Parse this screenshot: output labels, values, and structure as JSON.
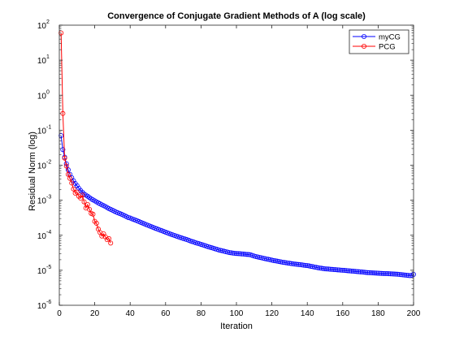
{
  "chart_data": {
    "type": "line",
    "title": "Convergence of Conjugate Gradient Methods of A (log scale)",
    "xlabel": "Iteration",
    "ylabel": "Residual Norm (log)",
    "xlim": [
      0,
      200
    ],
    "ylim": [
      1e-06,
      100
    ],
    "yscale": "log",
    "grid": false,
    "legend_position": "top-right",
    "x_ticks": [
      {
        "value": 0,
        "label": "0"
      },
      {
        "value": 20,
        "label": "20"
      },
      {
        "value": 40,
        "label": "40"
      },
      {
        "value": 60,
        "label": "60"
      },
      {
        "value": 80,
        "label": "80"
      },
      {
        "value": 100,
        "label": "100"
      },
      {
        "value": 120,
        "label": "120"
      },
      {
        "value": 140,
        "label": "140"
      },
      {
        "value": 160,
        "label": "160"
      },
      {
        "value": 180,
        "label": "180"
      },
      {
        "value": 200,
        "label": "200"
      }
    ],
    "y_ticks": [
      {
        "value": 1e-06,
        "base": "10",
        "exp": "-6"
      },
      {
        "value": 1e-05,
        "base": "10",
        "exp": "-5"
      },
      {
        "value": 0.0001,
        "base": "10",
        "exp": "-4"
      },
      {
        "value": 0.001,
        "base": "10",
        "exp": "-3"
      },
      {
        "value": 0.01,
        "base": "10",
        "exp": "-2"
      },
      {
        "value": 0.1,
        "base": "10",
        "exp": "-1"
      },
      {
        "value": 1,
        "base": "10",
        "exp": "0"
      },
      {
        "value": 10,
        "base": "10",
        "exp": "1"
      },
      {
        "value": 100,
        "base": "10",
        "exp": "2"
      }
    ],
    "series": [
      {
        "name": "myCG",
        "color": "#0000ff",
        "marker": "circle",
        "x": [
          1,
          2,
          3,
          4,
          5,
          6,
          7,
          8,
          9,
          10,
          11,
          12,
          13,
          14,
          15,
          16,
          17,
          18,
          19,
          20,
          21,
          22,
          23,
          24,
          25,
          26,
          27,
          28,
          29,
          30,
          31,
          32,
          33,
          34,
          35,
          36,
          37,
          38,
          39,
          40,
          41,
          42,
          43,
          44,
          45,
          46,
          47,
          48,
          49,
          50,
          51,
          52,
          53,
          54,
          55,
          56,
          57,
          58,
          59,
          60,
          61,
          62,
          63,
          64,
          65,
          66,
          67,
          68,
          69,
          70,
          71,
          72,
          73,
          74,
          75,
          76,
          77,
          78,
          79,
          80,
          81,
          82,
          83,
          84,
          85,
          86,
          87,
          88,
          89,
          90,
          91,
          92,
          93,
          94,
          95,
          96,
          97,
          98,
          99,
          100,
          101,
          102,
          103,
          104,
          105,
          106,
          107,
          108,
          109,
          110,
          111,
          112,
          113,
          114,
          115,
          116,
          117,
          118,
          119,
          120,
          121,
          122,
          123,
          124,
          125,
          126,
          127,
          128,
          129,
          130,
          131,
          132,
          133,
          134,
          135,
          136,
          137,
          138,
          139,
          140,
          141,
          142,
          143,
          144,
          145,
          146,
          147,
          148,
          149,
          150,
          151,
          152,
          153,
          154,
          155,
          156,
          157,
          158,
          159,
          160,
          161,
          162,
          163,
          164,
          165,
          166,
          167,
          168,
          169,
          170,
          171,
          172,
          173,
          174,
          175,
          176,
          177,
          178,
          179,
          180,
          181,
          182,
          183,
          184,
          185,
          186,
          187,
          188,
          189,
          190,
          191,
          192,
          193,
          194,
          195,
          196,
          197,
          198,
          199,
          200
        ],
        "values": [
          0.07,
          0.028,
          0.017,
          0.011,
          0.0074,
          0.0055,
          0.0044,
          0.0036,
          0.003,
          0.0026,
          0.0022,
          0.0019,
          0.0017,
          0.0015,
          0.0014,
          0.0013,
          0.0012,
          0.0011,
          0.00103,
          0.00096,
          0.0009,
          0.00084,
          0.00079,
          0.00074,
          0.0007,
          0.00066,
          0.00062,
          0.00058,
          0.00055,
          0.00052,
          0.00049,
          0.00046,
          0.00044,
          0.00042,
          0.0004,
          0.00038,
          0.00036,
          0.00034,
          0.00032,
          0.00031,
          0.000295,
          0.000282,
          0.00027,
          0.000258,
          0.000246,
          0.000234,
          0.000223,
          0.000212,
          0.000202,
          0.000193,
          0.000184,
          0.000175,
          0.000167,
          0.00016,
          0.000153,
          0.000146,
          0.00014,
          0.000134,
          0.000128,
          0.000122,
          0.000117,
          0.000112,
          0.000107,
          0.000103,
          9.9e-05,
          9.5e-05,
          9.1e-05,
          8.7e-05,
          8.4e-05,
          8.1e-05,
          7.8e-05,
          7.5e-05,
          7.2e-05,
          6.9e-05,
          6.6e-05,
          6.4e-05,
          6.1e-05,
          5.9e-05,
          5.7e-05,
          5.5e-05,
          5.3e-05,
          5.1e-05,
          4.9e-05,
          4.7e-05,
          4.55e-05,
          4.4e-05,
          4.25e-05,
          4.1e-05,
          3.95e-05,
          3.8e-05,
          3.7e-05,
          3.6e-05,
          3.5e-05,
          3.4e-05,
          3.3e-05,
          3.2e-05,
          3.15e-05,
          3.1e-05,
          3.05e-05,
          3e-05,
          2.98e-05,
          2.96e-05,
          2.93e-05,
          2.9e-05,
          2.87e-05,
          2.84e-05,
          2.81e-05,
          2.75e-05,
          2.65e-05,
          2.55e-05,
          2.47e-05,
          2.4e-05,
          2.34e-05,
          2.28e-05,
          2.22e-05,
          2.16e-05,
          2.1e-05,
          2.05e-05,
          2e-05,
          1.95e-05,
          1.9e-05,
          1.86e-05,
          1.82e-05,
          1.78e-05,
          1.74e-05,
          1.7e-05,
          1.67e-05,
          1.64e-05,
          1.61e-05,
          1.58e-05,
          1.55e-05,
          1.52e-05,
          1.5e-05,
          1.48e-05,
          1.46e-05,
          1.44e-05,
          1.42e-05,
          1.4e-05,
          1.38e-05,
          1.36e-05,
          1.33e-05,
          1.3e-05,
          1.27e-05,
          1.24e-05,
          1.21e-05,
          1.18e-05,
          1.16e-05,
          1.14e-05,
          1.12e-05,
          1.1e-05,
          1.09e-05,
          1.08e-05,
          1.07e-05,
          1.06e-05,
          1.05e-05,
          1.04e-05,
          1.03e-05,
          1.02e-05,
          1.01e-05,
          1e-05,
          9.9e-06,
          9.8e-06,
          9.7e-06,
          9.6e-06,
          9.5e-06,
          9.4e-06,
          9.3e-06,
          9.2e-06,
          9.1e-06,
          9e-06,
          8.9e-06,
          8.8e-06,
          8.7e-06,
          8.6e-06,
          8.5e-06,
          8.45e-06,
          8.4e-06,
          8.35e-06,
          8.3e-06,
          8.25e-06,
          8.2e-06,
          8.15e-06,
          8.1e-06,
          8.05e-06,
          8e-06,
          7.95e-06,
          7.9e-06,
          7.85e-06,
          7.8e-06,
          7.75e-06,
          7.7e-06,
          7.6e-06,
          7.5e-06,
          7.4e-06,
          7.3e-06,
          7.2e-06,
          7.1e-06,
          7e-06,
          7.2e-06,
          7.6e-06
        ]
      },
      {
        "name": "PCG",
        "color": "#ff0000",
        "marker": "circle",
        "x": [
          1,
          2,
          3,
          4,
          5,
          6,
          7,
          8,
          9,
          10,
          11,
          12,
          13,
          14,
          15,
          16,
          17,
          18,
          19,
          20,
          21,
          22,
          23,
          24,
          25,
          26,
          27,
          28,
          29
        ],
        "values": [
          60,
          0.3,
          0.016,
          0.0095,
          0.0055,
          0.0042,
          0.0031,
          0.0021,
          0.0016,
          0.0017,
          0.0013,
          0.00115,
          0.0014,
          0.0009,
          0.0006,
          0.00075,
          0.00055,
          0.00042,
          0.0004,
          0.00025,
          0.00022,
          0.00015,
          0.00012,
          9.5e-05,
          0.00011,
          9e-05,
          7.5e-05,
          8e-05,
          6e-05
        ]
      }
    ]
  }
}
